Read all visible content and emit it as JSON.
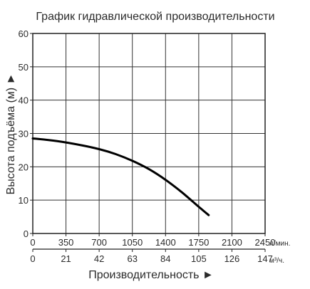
{
  "chart_data": {
    "type": "line",
    "title": "График гидравлической производительности",
    "xlabel": "Производительность ►",
    "ylabel": "Высота подъёма (м) ►",
    "xlim": [
      0,
      2450
    ],
    "ylim": [
      0,
      60
    ],
    "grid": true,
    "x_ticks": [
      "0",
      "350",
      "700",
      "1050",
      "1400",
      "1750",
      "2100",
      "2450"
    ],
    "x_unit": "л/мин.",
    "x2_ticks": [
      "0",
      "21",
      "42",
      "63",
      "84",
      "105",
      "126",
      "147"
    ],
    "x2_unit": "м³/ч.",
    "y_ticks": [
      "0",
      "10",
      "20",
      "30",
      "40",
      "50",
      "60"
    ],
    "series": [
      {
        "x": [
          0,
          175,
          350,
          525,
          700,
          875,
          1050,
          1225,
          1400,
          1575,
          1750,
          1855
        ],
        "y": [
          28.5,
          28.0,
          27.3,
          26.4,
          25.3,
          23.8,
          21.8,
          19.3,
          16.1,
          12.3,
          8.0,
          5.5
        ],
        "color": "#000000"
      }
    ]
  }
}
